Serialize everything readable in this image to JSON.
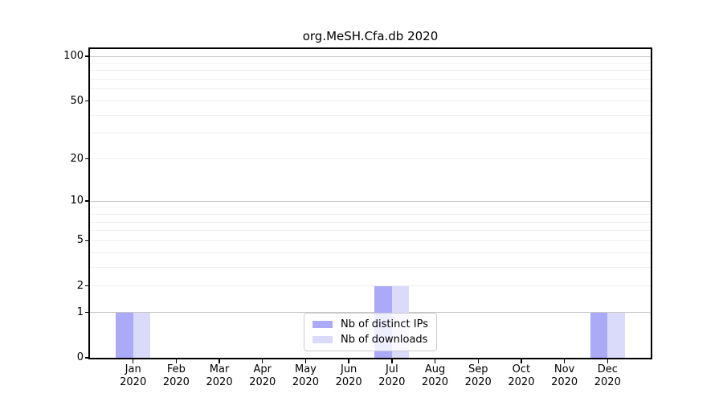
{
  "chart_data": {
    "type": "bar",
    "title": "org.MeSH.Cfa.db 2020",
    "categories": [
      {
        "month": "Jan",
        "year": "2020"
      },
      {
        "month": "Feb",
        "year": "2020"
      },
      {
        "month": "Mar",
        "year": "2020"
      },
      {
        "month": "Apr",
        "year": "2020"
      },
      {
        "month": "May",
        "year": "2020"
      },
      {
        "month": "Jun",
        "year": "2020"
      },
      {
        "month": "Jul",
        "year": "2020"
      },
      {
        "month": "Aug",
        "year": "2020"
      },
      {
        "month": "Sep",
        "year": "2020"
      },
      {
        "month": "Oct",
        "year": "2020"
      },
      {
        "month": "Nov",
        "year": "2020"
      },
      {
        "month": "Dec",
        "year": "2020"
      }
    ],
    "series": [
      {
        "name": "Nb of distinct IPs",
        "color": "#aaaaf8",
        "values": [
          1,
          0,
          0,
          0,
          0,
          0,
          2,
          0,
          0,
          0,
          0,
          1
        ]
      },
      {
        "name": "Nb of downloads",
        "color": "#dadafa",
        "values": [
          1,
          0,
          0,
          0,
          0,
          0,
          2,
          0,
          0,
          0,
          0,
          1
        ]
      }
    ],
    "scale": "log1p",
    "ylim": [
      0,
      100
    ],
    "xlabel": "",
    "ylabel": "",
    "y_tick_values": [
      0,
      1,
      2,
      5,
      10,
      20,
      50,
      100
    ],
    "y_major_gridlines": [
      1,
      10,
      100
    ],
    "y_minor_gridlines": [
      2,
      3,
      4,
      5,
      6,
      7,
      8,
      9,
      20,
      30,
      40,
      50,
      60,
      70,
      80,
      90
    ],
    "grid": true,
    "legend_position": "lower center"
  },
  "colors": {
    "bar_distinct_ips": "#aaaaf8",
    "bar_downloads": "#dadafa",
    "major_grid": "#c6c6c6",
    "minor_grid": "#efefef",
    "axis": "#000000",
    "text": "#000000",
    "legend_border": "#cccccc",
    "background": "#ffffff"
  }
}
